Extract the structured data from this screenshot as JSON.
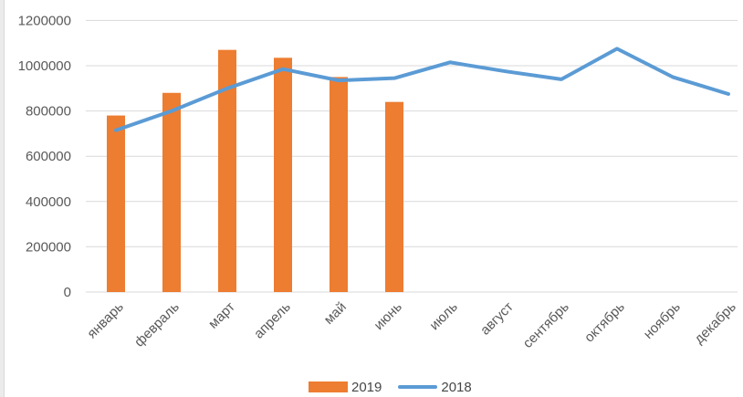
{
  "chart_data": {
    "type": "bar+line",
    "title": "",
    "xlabel": "",
    "ylabel": "",
    "categories": [
      "январь",
      "февраль",
      "март",
      "апрель",
      "май",
      "июнь",
      "июль",
      "август",
      "сентябрь",
      "октябрь",
      "ноябрь",
      "декабрь"
    ],
    "series": [
      {
        "name": "2019",
        "type": "bar",
        "color": "#ED7D31",
        "values": [
          780000,
          880000,
          1070000,
          1035000,
          950000,
          840000,
          null,
          null,
          null,
          null,
          null,
          null
        ]
      },
      {
        "name": "2018",
        "type": "line",
        "color": "#5B9BD5",
        "values": [
          715000,
          800000,
          900000,
          985000,
          935000,
          945000,
          1015000,
          975000,
          940000,
          1075000,
          950000,
          875000
        ]
      }
    ],
    "y_axis": {
      "min": 0,
      "max": 1200000,
      "tick_step": 200000,
      "tick_labels": [
        "0",
        "200000",
        "400000",
        "600000",
        "800000",
        "1000000",
        "1200000"
      ]
    },
    "grid": true,
    "legend_position": "bottom",
    "colors": {
      "gridline": "#D9D9D9",
      "axis_line": "#D9D9D9",
      "axis_text": "#595959"
    }
  }
}
